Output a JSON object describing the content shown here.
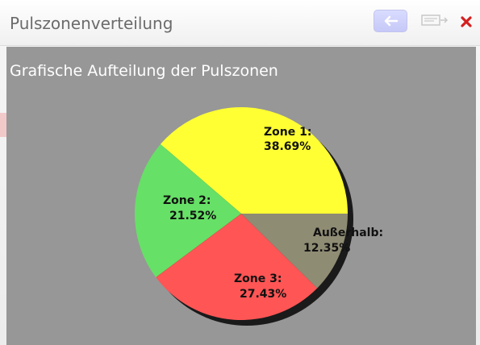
{
  "window": {
    "title": "Pulszonenverteilung",
    "toolbar": {
      "back_icon": "arrow-left-icon",
      "export_icon": "export-icon",
      "close_icon": "close-icon"
    }
  },
  "panel": {
    "heading": "Grafische Aufteilung der Pulszonen"
  },
  "chart_data": {
    "type": "pie",
    "title": "Grafische Aufteilung der Pulszonen",
    "slices": [
      {
        "name": "Zone 1:",
        "value": 38.69,
        "label": "38.69%",
        "color": "#ffff33"
      },
      {
        "name": "Zone 2:",
        "value": 21.52,
        "label": "21.52%",
        "color": "#66e066"
      },
      {
        "name": "Zone 3:",
        "value": 27.43,
        "label": "27.43%",
        "color": "#ff5555"
      },
      {
        "name": "Außerhalb:",
        "value": 12.35,
        "label": "12.35%",
        "color": "#8f8c74"
      }
    ]
  },
  "colors": {
    "panel_bg": "#979797",
    "accent_back": "#c6c8f7",
    "close_red": "#d42020"
  }
}
